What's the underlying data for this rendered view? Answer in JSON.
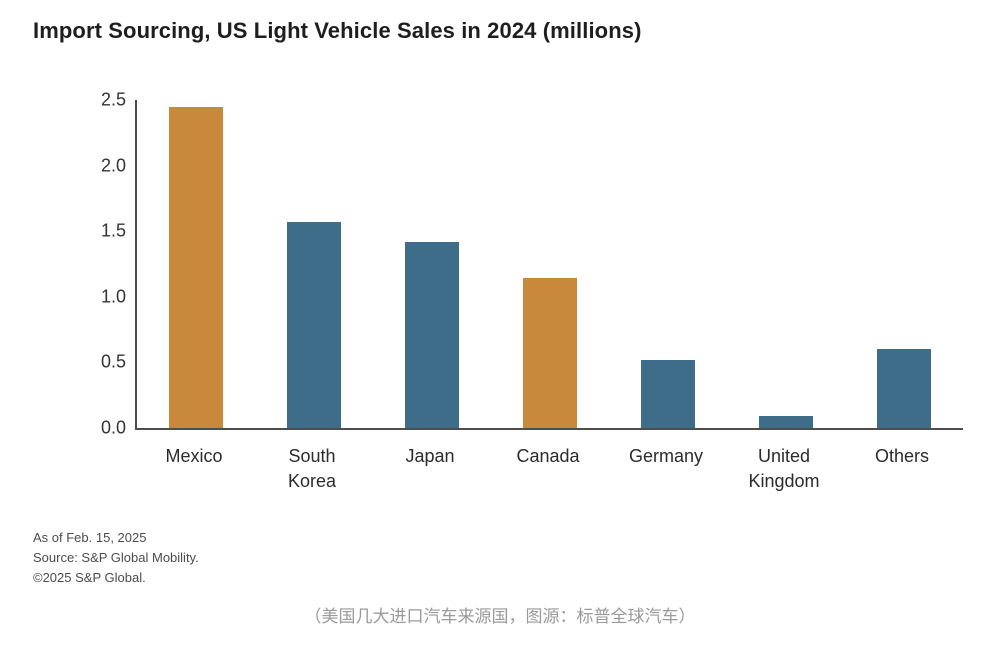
{
  "chart_data": {
    "type": "bar",
    "title": "Import Sourcing, US Light Vehicle Sales in 2024 (millions)",
    "categories": [
      "Mexico",
      "South Korea",
      "Japan",
      "Canada",
      "Germany",
      "United Kingdom",
      "Others"
    ],
    "values": [
      2.45,
      1.57,
      1.42,
      1.14,
      0.52,
      0.09,
      0.6
    ],
    "bar_colors": [
      "#c8893c",
      "#3d6d89",
      "#3d6d89",
      "#c8893c",
      "#3d6d89",
      "#3d6d89",
      "#3d6d89"
    ],
    "highlight_color": "#c8893c",
    "default_color": "#3d6d89",
    "ylim": [
      0,
      2.5
    ],
    "yticks": [
      "0.0",
      "0.5",
      "1.0",
      "1.5",
      "2.0",
      "2.5"
    ],
    "xlabel": "",
    "ylabel": "",
    "grid": false,
    "legend_position": "none"
  },
  "footnote": {
    "as_of": "As of Feb. 15, 2025",
    "source": "Source: S&P Global Mobility.",
    "copyright": "©2025 S&P Global."
  },
  "caption": {
    "text": "（美国几大进口汽车来源国，图源：标普全球汽车）"
  },
  "colors": {
    "axis": "#4d4d4d",
    "title_text": "#1e1e1e",
    "tick_text": "#333333",
    "footnote_text": "#4c4c4c",
    "caption_text": "#9a9a9a"
  }
}
